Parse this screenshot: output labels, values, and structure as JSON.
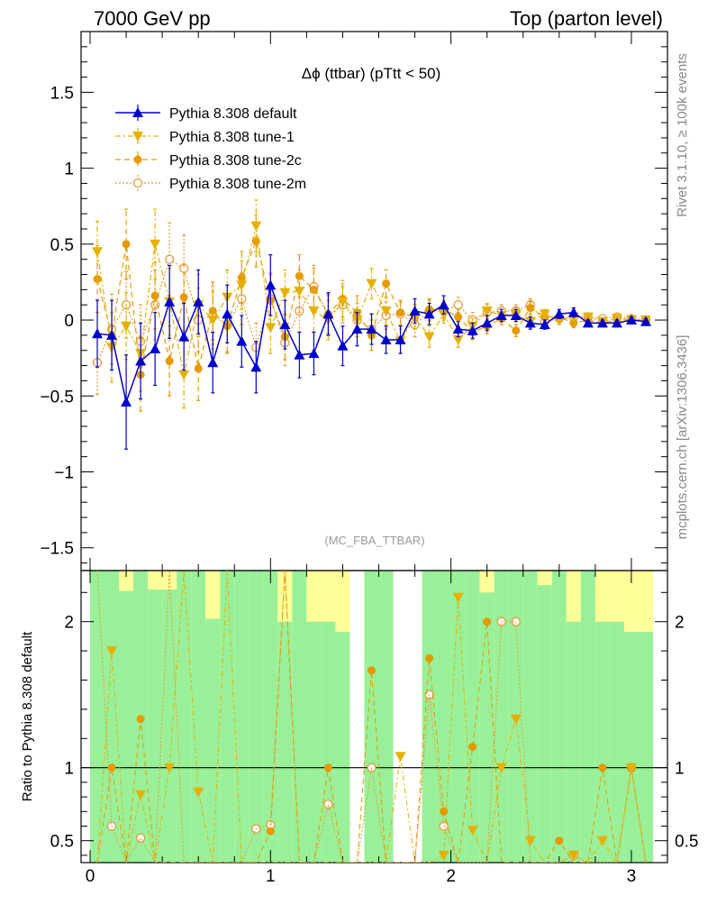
{
  "header": {
    "left": "7000 GeV pp",
    "right": "Top (parton level)"
  },
  "side": {
    "rivet": "Rivet 3.1.10, ≥ 100k events",
    "mcplots": "mcplots.cern.ch [arXiv:1306.3436]"
  },
  "ratio_ylabel": "Ratio to Pythia 8.308 default",
  "colors": {
    "default": "#0000cc",
    "tune1": "#e6b000",
    "tune2c": "#e69900",
    "tune2m": "#e69b3c",
    "band_green": "#99f099",
    "band_yellow": "#ffff99"
  },
  "chart_data": {
    "type": "line",
    "title": "Δϕ (ttbar) (pTtt < 50)",
    "watermark": "(MC_FBA_TTBAR)",
    "xlim": [
      -0.05,
      3.2
    ],
    "ylim": [
      -1.65,
      1.9
    ],
    "ratio_ylim": [
      0.35,
      2.35
    ],
    "xticks": [
      "0",
      "1",
      "2",
      "3"
    ],
    "yticks": [
      "1.5",
      "1",
      "0.5",
      "0",
      "−0.5",
      "−1",
      "−1.5"
    ],
    "ratio_yticks": [
      "2",
      "1",
      "0.5"
    ],
    "x": [
      0.04,
      0.12,
      0.2,
      0.28,
      0.36,
      0.44,
      0.52,
      0.6,
      0.68,
      0.76,
      0.84,
      0.92,
      1.0,
      1.08,
      1.16,
      1.24,
      1.32,
      1.4,
      1.48,
      1.56,
      1.64,
      1.72,
      1.8,
      1.88,
      1.96,
      2.04,
      2.12,
      2.2,
      2.28,
      2.36,
      2.44,
      2.52,
      2.6,
      2.68,
      2.76,
      2.84,
      2.92,
      3.0,
      3.08
    ],
    "series": [
      {
        "name": "Pythia 8.308 default",
        "marker": "triangle-up",
        "style": "solid",
        "values": [
          -0.09,
          -0.1,
          -0.54,
          -0.27,
          -0.19,
          0.12,
          -0.11,
          0.12,
          -0.28,
          0.04,
          -0.14,
          -0.31,
          0.23,
          -0.03,
          -0.23,
          -0.22,
          0.04,
          -0.17,
          -0.06,
          -0.06,
          -0.13,
          -0.13,
          0.06,
          0.04,
          0.1,
          -0.06,
          -0.07,
          -0.02,
          0.03,
          0.03,
          -0.02,
          -0.03,
          0.04,
          0.05,
          -0.02,
          -0.02,
          -0.02,
          0.0,
          -0.01
        ],
        "errors": [
          0.22,
          0.23,
          0.31,
          0.25,
          0.24,
          0.24,
          0.22,
          0.21,
          0.2,
          0.19,
          0.17,
          0.17,
          0.2,
          0.16,
          0.15,
          0.14,
          0.14,
          0.13,
          0.11,
          0.1,
          0.09,
          0.09,
          0.08,
          0.07,
          0.06,
          0.05,
          0.05,
          0.05,
          0.04,
          0.04,
          0.04,
          0.03,
          0.03,
          0.03,
          0.02,
          0.02,
          0.02,
          0.02,
          0.02
        ]
      },
      {
        "name": "Pythia 8.308 tune-1",
        "marker": "triangle-down",
        "style": "dashdot",
        "values": [
          0.45,
          -0.18,
          -0.04,
          -0.22,
          0.5,
          0.12,
          -0.36,
          0.1,
          0.0,
          0.15,
          0.23,
          0.62,
          -0.05,
          0.18,
          0.19,
          0.06,
          0.0,
          0.12,
          0.0,
          0.24,
          0.06,
          -0.14,
          0.02,
          -0.11,
          0.04,
          -0.13,
          -0.04,
          0.06,
          0.03,
          0.04,
          -0.01,
          0.04,
          0.0,
          0.02,
          0.02,
          -0.01,
          0.01,
          0.0,
          0.0
        ],
        "errors": [
          0.2,
          0.23,
          0.22,
          0.25,
          0.23,
          0.22,
          0.22,
          0.2,
          0.19,
          0.18,
          0.16,
          0.17,
          0.17,
          0.15,
          0.14,
          0.14,
          0.13,
          0.12,
          0.11,
          0.1,
          0.09,
          0.08,
          0.08,
          0.07,
          0.06,
          0.05,
          0.05,
          0.05,
          0.04,
          0.04,
          0.04,
          0.03,
          0.03,
          0.03,
          0.02,
          0.02,
          0.02,
          0.02,
          0.02
        ]
      },
      {
        "name": "Pythia 8.308 tune-2c",
        "marker": "circle",
        "style": "dashed",
        "values": [
          0.27,
          -0.1,
          0.5,
          -0.36,
          0.16,
          -0.27,
          0.15,
          -0.32,
          0.06,
          -0.04,
          0.28,
          0.52,
          0.13,
          -0.11,
          0.29,
          0.2,
          0.04,
          0.14,
          0.05,
          -0.1,
          0.24,
          0.05,
          0.02,
          0.07,
          0.07,
          0.02,
          -0.08,
          -0.04,
          0.01,
          -0.07,
          0.08,
          0.02,
          0.02,
          -0.02,
          0.0,
          -0.02,
          0.0,
          0.0,
          0.0
        ],
        "errors": [
          0.22,
          0.23,
          0.23,
          0.24,
          0.22,
          0.23,
          0.22,
          0.21,
          0.19,
          0.18,
          0.17,
          0.17,
          0.17,
          0.15,
          0.14,
          0.14,
          0.13,
          0.12,
          0.11,
          0.1,
          0.09,
          0.08,
          0.08,
          0.07,
          0.06,
          0.05,
          0.05,
          0.05,
          0.04,
          0.04,
          0.04,
          0.03,
          0.03,
          0.03,
          0.02,
          0.02,
          0.02,
          0.02,
          0.02
        ]
      },
      {
        "name": "Pythia 8.308 tune-2m",
        "marker": "open-circle",
        "style": "dotted",
        "values": [
          -0.28,
          -0.06,
          0.1,
          -0.14,
          0.1,
          0.4,
          0.34,
          0.0,
          0.03,
          -0.03,
          0.14,
          -0.18,
          0.14,
          -0.15,
          0.06,
          0.22,
          0.03,
          0.1,
          0.0,
          -0.06,
          0.03,
          0.04,
          -0.03,
          0.06,
          0.06,
          0.1,
          0.0,
          0.05,
          0.06,
          0.06,
          0.1,
          -0.01,
          0.01,
          0.02,
          0.02,
          0.01,
          0.02,
          0.01,
          0.0
        ],
        "errors": [
          0.21,
          0.23,
          0.22,
          0.24,
          0.23,
          0.24,
          0.22,
          0.21,
          0.19,
          0.18,
          0.17,
          0.16,
          0.17,
          0.15,
          0.14,
          0.14,
          0.13,
          0.12,
          0.11,
          0.1,
          0.09,
          0.08,
          0.08,
          0.07,
          0.06,
          0.05,
          0.05,
          0.05,
          0.04,
          0.04,
          0.04,
          0.03,
          0.03,
          0.03,
          0.02,
          0.02,
          0.02,
          0.02,
          0.02
        ]
      }
    ],
    "ratio_band": {
      "green": [
        2.35,
        2.35,
        2.35,
        2.35,
        2.35,
        2.35,
        2.35,
        2.35,
        2.35,
        2.35,
        2.35,
        2.35,
        2.35,
        2.35,
        2.35,
        2.35,
        2.35,
        2.35,
        null,
        2.35,
        2.35,
        null,
        null,
        2.35,
        2.35,
        2.35,
        2.35,
        2.35,
        2.35,
        2.35,
        2.35,
        2.35,
        2.35,
        2.35,
        2.35,
        2.35,
        2.35,
        2.35,
        2.35
      ],
      "yellow_top": [
        2.35,
        2.35,
        2.35,
        2.35,
        2.35,
        2.35,
        2.35,
        2.35,
        2.35,
        2.35,
        2.35,
        2.35,
        2.35,
        2.35,
        2.35,
        2.35,
        2.35,
        2.35,
        null,
        2.35,
        2.35,
        null,
        null,
        2.35,
        2.35,
        2.35,
        2.35,
        2.35,
        2.35,
        2.35,
        2.35,
        2.35,
        2.35,
        2.35,
        2.35,
        2.35,
        2.35,
        2.35,
        2.35
      ],
      "green_top": [
        2.35,
        2.35,
        2.21,
        2.35,
        2.22,
        2.22,
        2.35,
        2.35,
        2.02,
        2.35,
        2.35,
        2.35,
        2.35,
        2.0,
        2.35,
        2.0,
        2.0,
        1.93,
        null,
        2.35,
        2.35,
        null,
        null,
        2.35,
        2.35,
        2.35,
        2.35,
        2.2,
        2.35,
        2.35,
        2.35,
        2.25,
        2.35,
        2.0,
        2.35,
        2.0,
        2.0,
        1.93,
        1.93
      ]
    }
  }
}
